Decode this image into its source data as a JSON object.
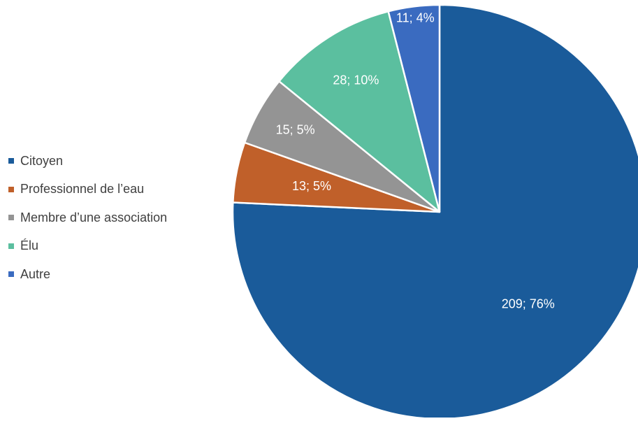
{
  "chart_data": {
    "type": "pie",
    "title": "",
    "start_angle_deg": 0,
    "direction": "clockwise",
    "legend_position": "left",
    "slices": [
      {
        "label": "Citoyen",
        "value": 209,
        "percent": 76,
        "data_label": "209; 76%",
        "color": "#1a5b9a"
      },
      {
        "label": "Professionnel de l’eau",
        "value": 13,
        "percent": 5,
        "data_label": "13; 5%",
        "color": "#c0602a"
      },
      {
        "label": "Membre d’une association",
        "value": 15,
        "percent": 5,
        "data_label": "15; 5%",
        "color": "#949494"
      },
      {
        "label": "Élu",
        "value": 28,
        "percent": 10,
        "data_label": "28; 10%",
        "color": "#5bbf9f"
      },
      {
        "label": "Autre",
        "value": 11,
        "percent": 4,
        "data_label": "11; 4%",
        "color": "#3a6bc0"
      }
    ]
  }
}
